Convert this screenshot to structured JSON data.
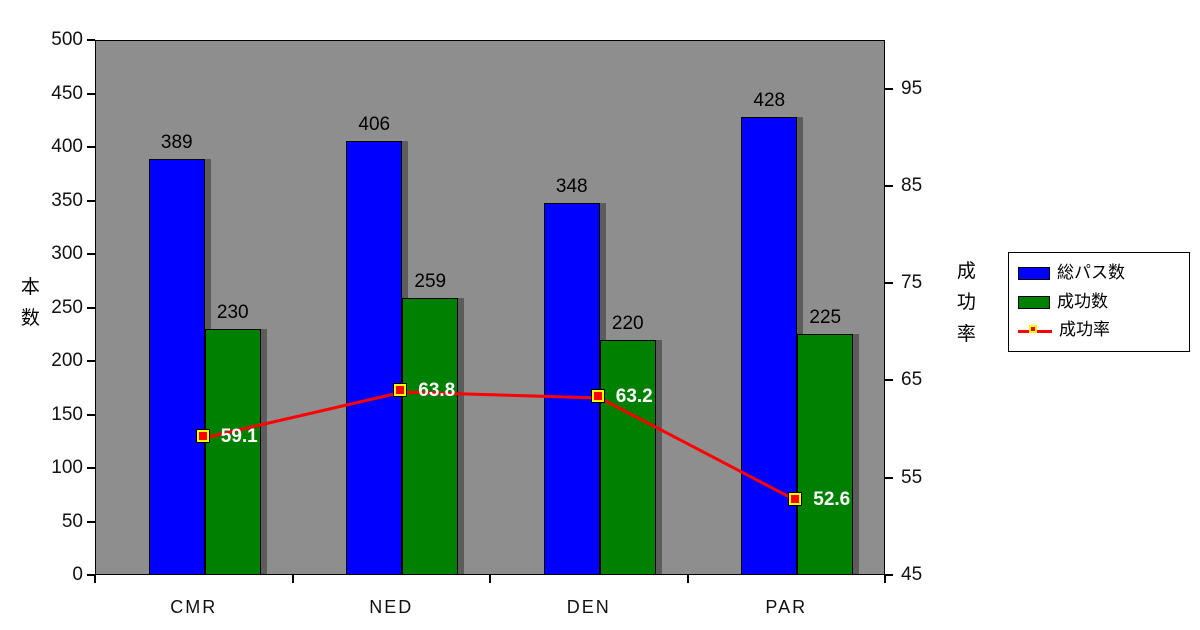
{
  "chart_data": {
    "type": "combo",
    "title": "",
    "categories": [
      "CMR",
      "NED",
      "DEN",
      "PAR"
    ],
    "series": [
      {
        "name": "総パス数",
        "type": "bar",
        "axis": "left",
        "color": "#0000ff",
        "values": [
          389,
          406,
          348,
          428
        ]
      },
      {
        "name": "成功数",
        "type": "bar",
        "axis": "left",
        "color": "#008000",
        "values": [
          230,
          259,
          220,
          225
        ]
      },
      {
        "name": "成功率",
        "type": "line",
        "axis": "right",
        "color": "#ff0000",
        "marker": "square",
        "marker_fill": "#ff0000",
        "marker_border": "#ffff00",
        "values": [
          59.1,
          63.8,
          63.2,
          52.6
        ]
      }
    ],
    "left_axis": {
      "title": "本数",
      "min": 0,
      "max": 500,
      "step": 50,
      "tick_labels": [
        0,
        50,
        100,
        150,
        200,
        250,
        300,
        350,
        400,
        450,
        500
      ]
    },
    "right_axis": {
      "title": "成功率",
      "min": 45,
      "max": 100,
      "tick_labels": [
        45,
        55,
        65,
        75,
        85,
        95
      ]
    },
    "plot_bg": "#8e8e8e",
    "bar_label_color": "#000000",
    "line_label_color": "#ffffff",
    "legend_position": "right",
    "grid": false
  }
}
